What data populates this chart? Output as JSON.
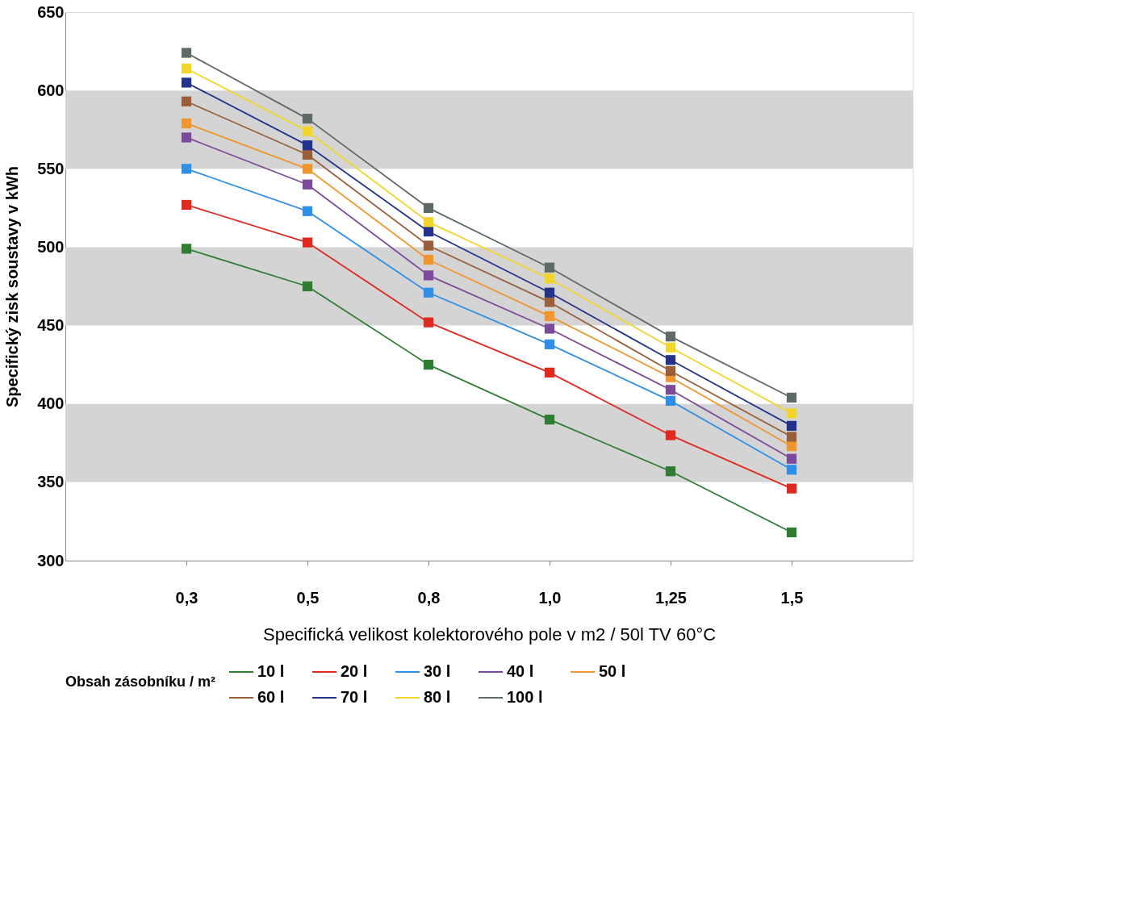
{
  "chart_data": {
    "type": "line",
    "xlabel": "Specifická velikost kolektorového pole v m2 / 50l TV 60°C",
    "ylabel": "Specifický zisk soustavy v kWh",
    "legend_title": "Obsah zásobníku / m²",
    "categories": [
      "0,3",
      "0,5",
      "0,8",
      "1,0",
      "1,25",
      "1,5"
    ],
    "ylim": [
      300,
      650
    ],
    "yticks": [
      300,
      350,
      400,
      450,
      500,
      550,
      600,
      650
    ],
    "grid": false,
    "legend": "bottom",
    "marker": "square",
    "line_style": "solid",
    "bands": [
      {
        "axis": "y",
        "from": 350,
        "to": 400,
        "color": "#d4d4d4"
      },
      {
        "axis": "y",
        "from": 450,
        "to": 500,
        "color": "#d4d4d4"
      },
      {
        "axis": "y",
        "from": 550,
        "to": 600,
        "color": "#d4d4d4"
      }
    ],
    "series": [
      {
        "name": "10 l",
        "color": "#2e7d32",
        "values": [
          499,
          475,
          425,
          390,
          357,
          318
        ]
      },
      {
        "name": "20 l",
        "color": "#e02a20",
        "values": [
          527,
          503,
          452,
          420,
          380,
          346
        ]
      },
      {
        "name": "30 l",
        "color": "#2f8fe6",
        "values": [
          550,
          523,
          471,
          438,
          402,
          358
        ]
      },
      {
        "name": "40 l",
        "color": "#7b4a9a",
        "values": [
          570,
          540,
          482,
          448,
          409,
          365
        ]
      },
      {
        "name": "50 l",
        "color": "#f0962e",
        "values": [
          579,
          550,
          492,
          456,
          417,
          373
        ]
      },
      {
        "name": "60 l",
        "color": "#9a5f3a",
        "values": [
          593,
          559,
          501,
          465,
          421,
          379
        ]
      },
      {
        "name": "70 l",
        "color": "#23328a",
        "values": [
          605,
          565,
          510,
          471,
          428,
          386
        ]
      },
      {
        "name": "80 l",
        "color": "#f2d52a",
        "values": [
          614,
          574,
          516,
          480,
          436,
          394
        ]
      },
      {
        "name": "100 l",
        "color": "#5f6a66",
        "values": [
          624,
          582,
          525,
          487,
          443,
          404
        ]
      }
    ]
  }
}
